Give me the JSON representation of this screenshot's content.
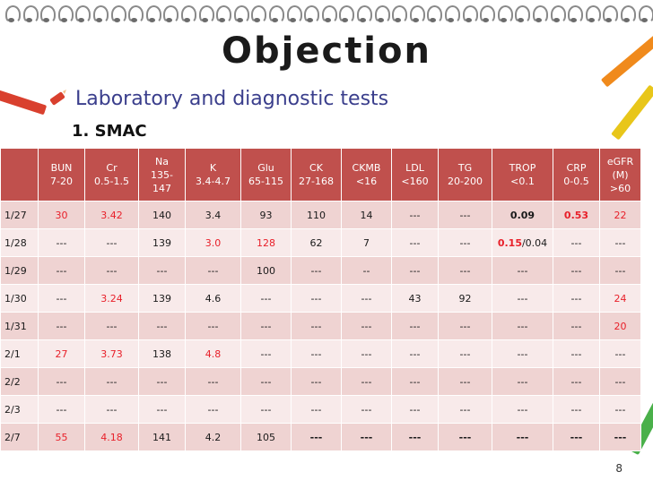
{
  "title": "Objection",
  "bullet": "Laboratory and diagnostic tests",
  "subhead": "1. SMAC",
  "columns": [
    {
      "name": "",
      "range": ""
    },
    {
      "name": "BUN",
      "range": "7-20"
    },
    {
      "name": "Cr",
      "range": "0.5-1.5"
    },
    {
      "name": "Na",
      "range": "135-\n147"
    },
    {
      "name": "K",
      "range": "3.4-4.7"
    },
    {
      "name": "Glu",
      "range": "65-115"
    },
    {
      "name": "CK",
      "range": "27-168"
    },
    {
      "name": "CKMB",
      "range": "<16"
    },
    {
      "name": "LDL",
      "range": "<160"
    },
    {
      "name": "TG",
      "range": "20-200"
    },
    {
      "name": "TROP",
      "range": "<0.1"
    },
    {
      "name": "CRP",
      "range": "0-0.5"
    },
    {
      "name": "eGFR\n(M)",
      "range": ">60"
    }
  ],
  "rows": [
    {
      "date": "1/27",
      "cells": [
        {
          "v": "30",
          "s": "red"
        },
        {
          "v": "3.42",
          "s": "red"
        },
        {
          "v": "140"
        },
        {
          "v": "3.4"
        },
        {
          "v": "93"
        },
        {
          "v": "110"
        },
        {
          "v": "14"
        },
        {
          "v": "---"
        },
        {
          "v": "---"
        },
        {
          "v": "0.09",
          "s": "b"
        },
        {
          "v": "0.53",
          "s": "red b"
        },
        {
          "v": "22",
          "s": "red"
        }
      ]
    },
    {
      "date": "1/28",
      "cells": [
        {
          "v": "---"
        },
        {
          "v": "---"
        },
        {
          "v": "139"
        },
        {
          "v": "3.0",
          "s": "red"
        },
        {
          "v": "128",
          "s": "red"
        },
        {
          "v": "62"
        },
        {
          "v": "7"
        },
        {
          "v": "---"
        },
        {
          "v": "---"
        },
        {
          "v": "0.15",
          "s": "red b",
          "extra": "/0.04"
        },
        {
          "v": "---"
        },
        {
          "v": "---"
        }
      ]
    },
    {
      "date": "1/29",
      "cells": [
        {
          "v": "---"
        },
        {
          "v": "---"
        },
        {
          "v": "---"
        },
        {
          "v": "---"
        },
        {
          "v": "100"
        },
        {
          "v": "---"
        },
        {
          "v": "--"
        },
        {
          "v": "---"
        },
        {
          "v": "---"
        },
        {
          "v": "---"
        },
        {
          "v": "---"
        },
        {
          "v": "---"
        }
      ]
    },
    {
      "date": "1/30",
      "cells": [
        {
          "v": "---"
        },
        {
          "v": "3.24",
          "s": "red"
        },
        {
          "v": "139"
        },
        {
          "v": "4.6"
        },
        {
          "v": "---"
        },
        {
          "v": "---"
        },
        {
          "v": "---"
        },
        {
          "v": "43"
        },
        {
          "v": "92"
        },
        {
          "v": "---"
        },
        {
          "v": "---"
        },
        {
          "v": "24",
          "s": "red"
        }
      ]
    },
    {
      "date": "1/31",
      "cells": [
        {
          "v": "---"
        },
        {
          "v": "---"
        },
        {
          "v": "---"
        },
        {
          "v": "---"
        },
        {
          "v": "---"
        },
        {
          "v": "---"
        },
        {
          "v": "---"
        },
        {
          "v": "---"
        },
        {
          "v": "---"
        },
        {
          "v": "---"
        },
        {
          "v": "---"
        },
        {
          "v": "20",
          "s": "red"
        }
      ]
    },
    {
      "date": "2/1",
      "cells": [
        {
          "v": "27",
          "s": "red"
        },
        {
          "v": "3.73",
          "s": "red"
        },
        {
          "v": "138"
        },
        {
          "v": "4.8",
          "s": "red"
        },
        {
          "v": "---"
        },
        {
          "v": "---"
        },
        {
          "v": "---"
        },
        {
          "v": "---"
        },
        {
          "v": "---"
        },
        {
          "v": "---"
        },
        {
          "v": "---"
        },
        {
          "v": "---"
        }
      ]
    },
    {
      "date": "2/2",
      "cells": [
        {
          "v": "---"
        },
        {
          "v": "---"
        },
        {
          "v": "---"
        },
        {
          "v": "---"
        },
        {
          "v": "---"
        },
        {
          "v": "---"
        },
        {
          "v": "---"
        },
        {
          "v": "---"
        },
        {
          "v": "---"
        },
        {
          "v": "---"
        },
        {
          "v": "---"
        },
        {
          "v": "---"
        }
      ]
    },
    {
      "date": "2/3",
      "cells": [
        {
          "v": "---"
        },
        {
          "v": "---"
        },
        {
          "v": "---"
        },
        {
          "v": "---"
        },
        {
          "v": "---"
        },
        {
          "v": "---"
        },
        {
          "v": "---"
        },
        {
          "v": "---"
        },
        {
          "v": "---"
        },
        {
          "v": "---"
        },
        {
          "v": "---"
        },
        {
          "v": "---"
        }
      ]
    },
    {
      "date": "2/7",
      "cells": [
        {
          "v": "55",
          "s": "red"
        },
        {
          "v": "4.18",
          "s": "red"
        },
        {
          "v": "141"
        },
        {
          "v": "4.2"
        },
        {
          "v": "105"
        },
        {
          "v": "---",
          "s": "b"
        },
        {
          "v": "---",
          "s": "b"
        },
        {
          "v": "---",
          "s": "b"
        },
        {
          "v": "---",
          "s": "b"
        },
        {
          "v": "---",
          "s": "b"
        },
        {
          "v": "---",
          "s": "b"
        },
        {
          "v": "---",
          "s": "b"
        }
      ]
    }
  ],
  "page_number": "8",
  "colors": {
    "header": "#c0504d",
    "row_odd": "#efd3d2",
    "row_even": "#f8eaea",
    "abnormal": "#e8202a",
    "bullet_text": "#3a3e8c"
  },
  "icons": {
    "bullet": "crayon-bullet-icon"
  }
}
